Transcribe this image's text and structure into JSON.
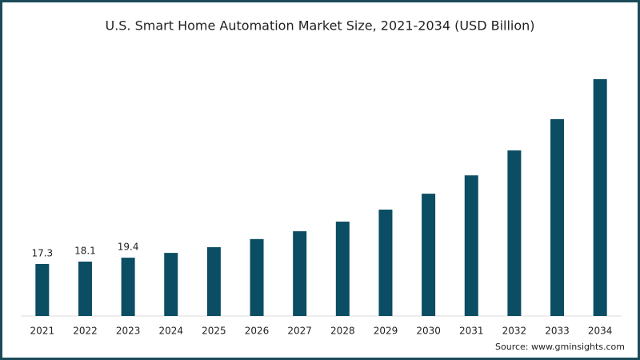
{
  "chart_data": {
    "type": "bar",
    "title": "U.S. Smart Home Automation Market Size, 2021-2034 (USD Billion)",
    "categories": [
      "2021",
      "2022",
      "2023",
      "2024",
      "2025",
      "2026",
      "2027",
      "2028",
      "2029",
      "2030",
      "2031",
      "2032",
      "2033",
      "2034"
    ],
    "values": [
      17.3,
      18.1,
      19.4,
      21.0,
      22.9,
      25.6,
      28.2,
      31.4,
      35.4,
      40.7,
      46.8,
      55.1,
      65.5,
      78.8
    ],
    "value_labels": [
      "17.3",
      "18.1",
      "19.4",
      null,
      null,
      null,
      null,
      null,
      null,
      null,
      null,
      null,
      null,
      null
    ],
    "color": "#0b4d62",
    "source": "Source: www.gminsights.com"
  }
}
